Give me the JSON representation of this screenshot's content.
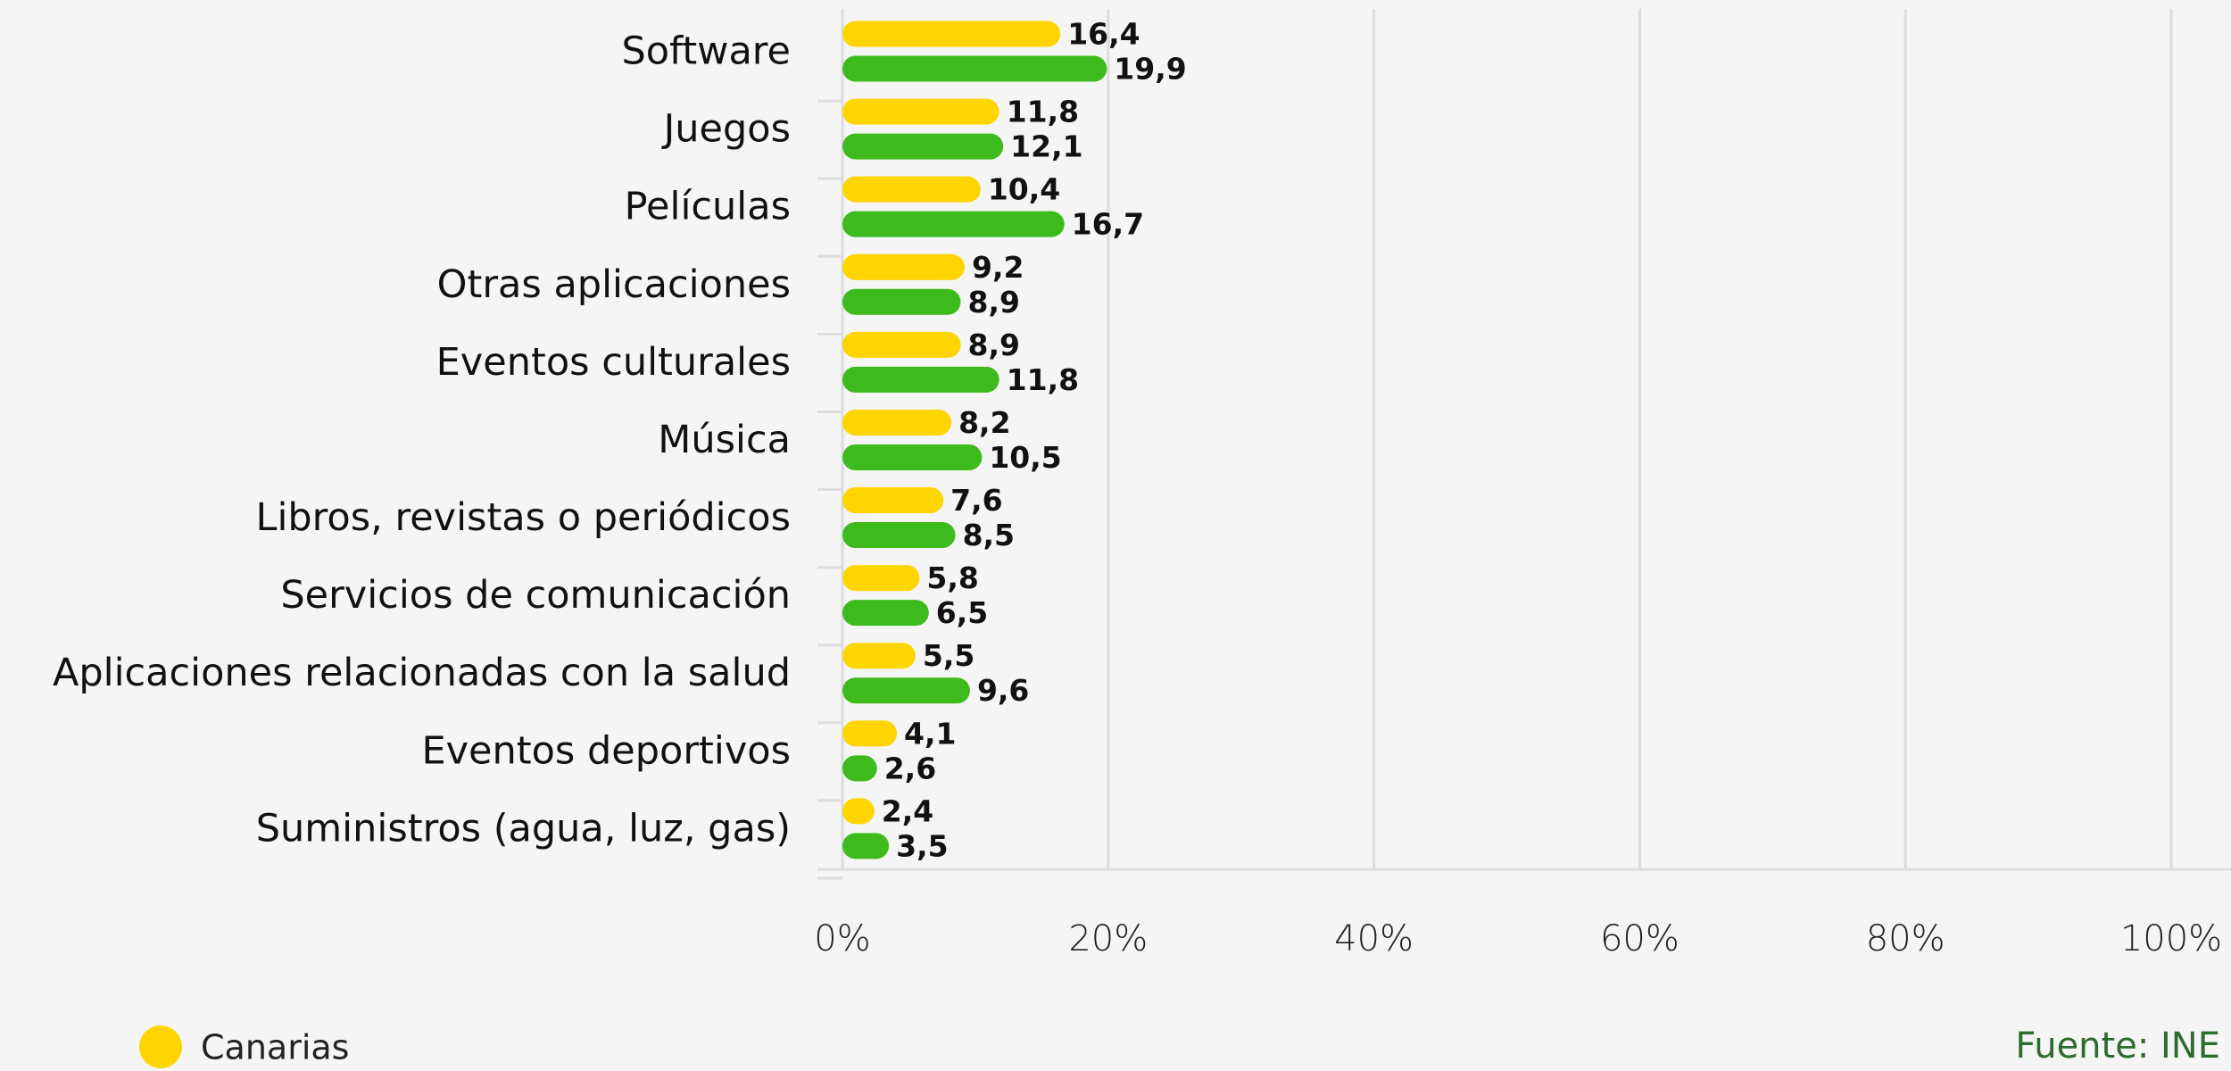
{
  "chart_data": {
    "type": "bar",
    "orientation": "horizontal",
    "categories": [
      "Software",
      "Juegos",
      "Películas",
      "Otras aplicaciones",
      "Eventos culturales",
      "Música",
      "Libros, revistas o periódicos",
      "Servicios de comunicación",
      "Aplicaciones relacionadas con la salud",
      "Eventos deportivos",
      "Suministros (agua, luz, gas)"
    ],
    "series": [
      {
        "name": "Canarias",
        "color": "#ffd500",
        "values": [
          16.4,
          11.8,
          10.4,
          9.2,
          8.9,
          8.2,
          7.6,
          5.8,
          5.5,
          4.1,
          2.4
        ],
        "value_labels": [
          "16,4",
          "11,8",
          "10,4",
          "9,2",
          "8,9",
          "8,2",
          "7,6",
          "5,8",
          "5,5",
          "4,1",
          "2,4"
        ]
      },
      {
        "color": "#3dbb1c",
        "values": [
          19.9,
          12.1,
          16.7,
          8.9,
          11.8,
          10.5,
          8.5,
          6.5,
          9.6,
          2.6,
          3.5
        ],
        "value_labels": [
          "19,9",
          "12,1",
          "16,7",
          "8,9",
          "11,8",
          "10,5",
          "8,5",
          "6,5",
          "9,6",
          "2,6",
          "3,5"
        ]
      }
    ],
    "xlim": [
      0,
      100
    ],
    "xticks": [
      {
        "value": 0,
        "label": "0%"
      },
      {
        "value": 20,
        "label": "20%"
      },
      {
        "value": 40,
        "label": "40%"
      },
      {
        "value": 60,
        "label": "60%"
      },
      {
        "value": 80,
        "label": "80%"
      },
      {
        "value": 100,
        "label": "100%"
      }
    ],
    "grid": true,
    "legend": "bottom-left",
    "source": "Fuente: INE"
  }
}
